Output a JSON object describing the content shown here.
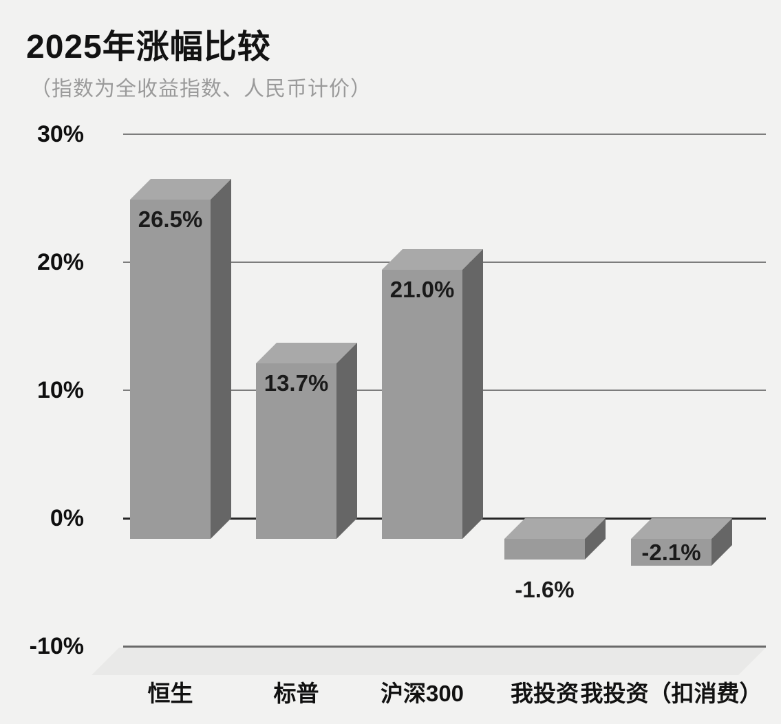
{
  "title": "2025年涨幅比较",
  "subtitle": "（指数为全收益指数、人民币计价）",
  "chart_data": {
    "type": "bar",
    "style": "3d-cuboid",
    "title": "2025年涨幅比较",
    "subtitle": "（指数为全收益指数、人民币计价）",
    "categories": [
      "恒生",
      "标普",
      "沪深300",
      "我投资",
      "我投资（扣消费）"
    ],
    "values": [
      26.5,
      13.7,
      21.0,
      -1.6,
      -2.1
    ],
    "value_labels": [
      "26.5%",
      "13.7%",
      "21.0%",
      "-1.6%",
      "-2.1%"
    ],
    "value_label_positions": [
      "inside-top",
      "inside-top",
      "inside-top",
      "below",
      "center"
    ],
    "xlabel": "",
    "ylabel": "",
    "y_ticks": [
      "30%",
      "20%",
      "10%",
      "0%",
      "-10%"
    ],
    "y_tick_values": [
      30,
      20,
      10,
      0,
      -10
    ],
    "ylim": [
      -10,
      30
    ],
    "grid": true,
    "legend": "none",
    "colors": {
      "background": "#f2f2f1",
      "bar_front": "#9b9b9b",
      "bar_top": "#a9a9a9",
      "bar_side": "#666666",
      "grid_line": "#7d7d7d",
      "zero_line": "#262626",
      "baseline": "#6a6a6a",
      "floor": "#e9e9e8",
      "title_text": "#121212",
      "subtitle_text": "#9a9a9a",
      "label_text": "#1a1a1a"
    }
  }
}
